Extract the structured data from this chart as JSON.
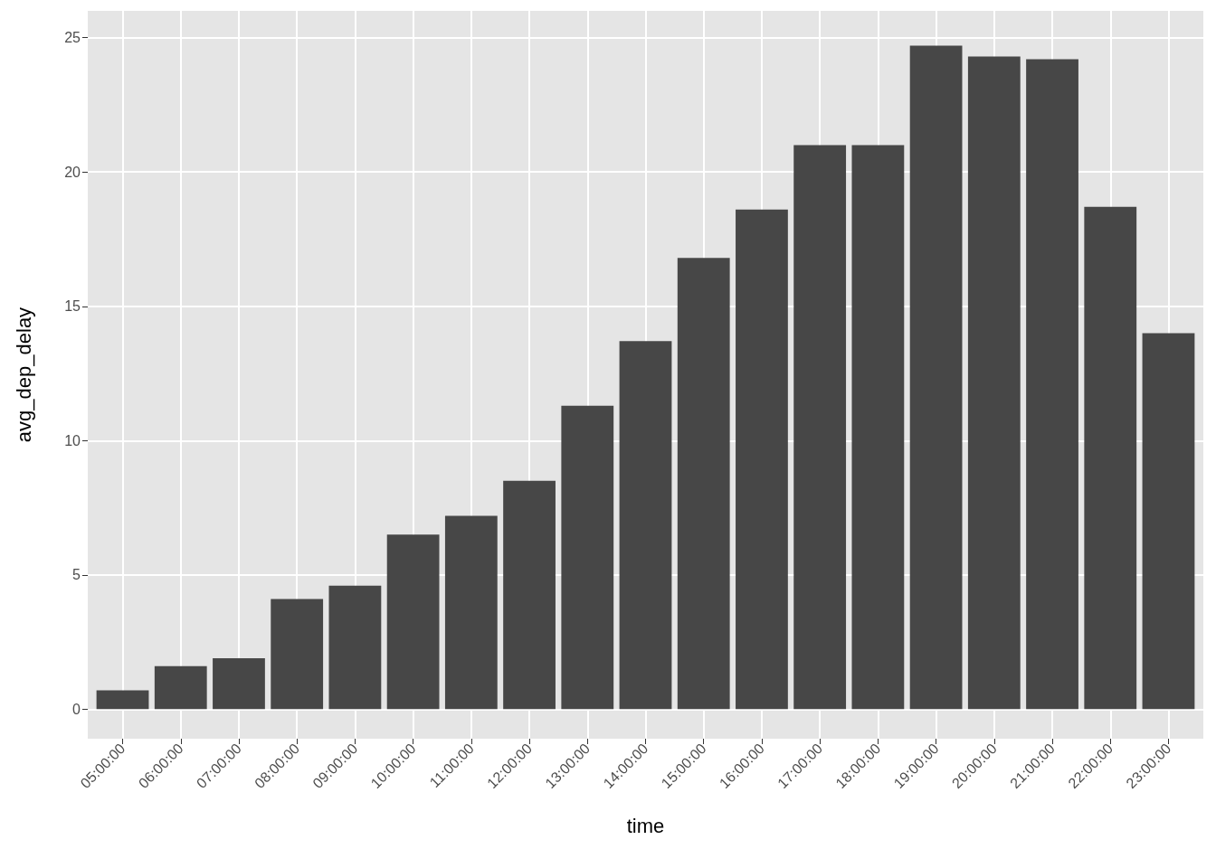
{
  "chart_data": {
    "type": "bar",
    "xlabel": "time",
    "ylabel": "avg_dep_delay",
    "categories": [
      "05:00:00",
      "06:00:00",
      "07:00:00",
      "08:00:00",
      "09:00:00",
      "10:00:00",
      "11:00:00",
      "12:00:00",
      "13:00:00",
      "14:00:00",
      "15:00:00",
      "16:00:00",
      "17:00:00",
      "18:00:00",
      "19:00:00",
      "20:00:00",
      "21:00:00",
      "22:00:00",
      "23:00:00"
    ],
    "values": [
      0.7,
      1.6,
      1.9,
      4.1,
      4.6,
      6.5,
      7.2,
      8.5,
      11.3,
      13.7,
      16.8,
      18.6,
      21.0,
      21.0,
      24.7,
      24.3,
      24.2,
      18.7,
      14.0
    ],
    "color": "#474747",
    "ylim": [
      -1.1,
      26
    ],
    "yticks": [
      0,
      5,
      10,
      15,
      20,
      25
    ],
    "grid": true
  }
}
